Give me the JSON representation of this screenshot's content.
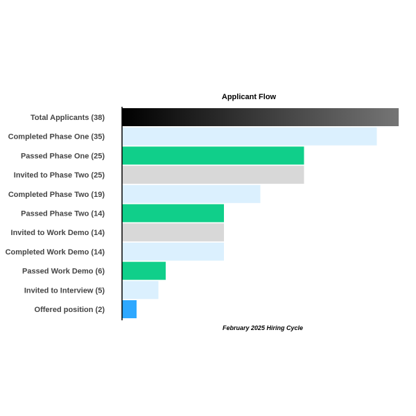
{
  "chart_data": {
    "type": "bar",
    "orientation": "horizontal",
    "title": "Applicant Flow",
    "caption": "February 2025 Hiring Cycle",
    "categories": [
      "Total Applicants (38)",
      "Completed Phase One (35)",
      "Passed Phase One (25)",
      "Invited to Phase Two (25)",
      "Completed Phase Two (19)",
      "Passed Phase Two (14)",
      "Invited to Work Demo (14)",
      "Completed Work Demo (14)",
      "Passed Work Demo (6)",
      "Invited to Interview (5)",
      "Offered position (2)"
    ],
    "values": [
      38,
      35,
      25,
      25,
      19,
      14,
      14,
      14,
      6,
      5,
      2
    ],
    "colors": [
      "gradient",
      "#dbf0fe",
      "#10cf8a",
      "#d8d8d8",
      "#dbf0fe",
      "#10cf8a",
      "#d8d8d8",
      "#dbf0fe",
      "#10cf8a",
      "#dbf0fe",
      "#2ea8ff"
    ],
    "gradient_colors": [
      "#000000",
      "#757575"
    ],
    "xlim": [
      0,
      38
    ],
    "grid": false,
    "legend": "none"
  }
}
